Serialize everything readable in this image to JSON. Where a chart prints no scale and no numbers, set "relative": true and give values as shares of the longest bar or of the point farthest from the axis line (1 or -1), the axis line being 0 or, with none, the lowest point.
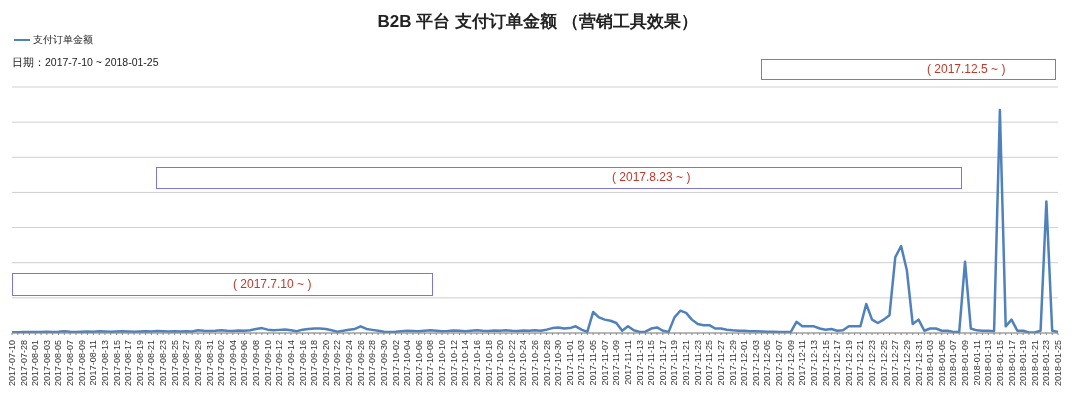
{
  "chart_data": {
    "type": "line",
    "title": "B2B 平台 支付订单金额 （营销工具效果）",
    "annotations": [
      "日期：2017-7-10 ~ 2018-01-25",
      "( 2017.7.10 ~ )",
      "( 2017.8.23 ~ )",
      "( 2017.12.5 ~ )"
    ],
    "categories": [
      "2017-07-10",
      null,
      "2017-07-28",
      null,
      "2017-08-01",
      null,
      "2017-08-03",
      null,
      "2017-08-05",
      null,
      "2017-08-07",
      null,
      "2017-08-09",
      null,
      "2017-08-11",
      null,
      "2017-08-13",
      null,
      "2017-08-15",
      null,
      "2017-08-17",
      null,
      "2017-08-19",
      null,
      "2017-08-21",
      null,
      "2017-08-23",
      null,
      "2017-08-25",
      null,
      "2017-08-27",
      null,
      "2017-08-29",
      null,
      "2017-08-31",
      null,
      "2017-09-02",
      null,
      "2017-09-04",
      null,
      "2017-09-06",
      null,
      "2017-09-08",
      null,
      "2017-09-10",
      null,
      "2017-09-12",
      null,
      "2017-09-14",
      null,
      "2017-09-16",
      null,
      "2017-09-18",
      null,
      "2017-09-20",
      null,
      "2017-09-22",
      null,
      "2017-09-24",
      null,
      "2017-09-26",
      null,
      "2017-09-28",
      null,
      "2017-09-30",
      null,
      "2017-10-02",
      null,
      "2017-10-04",
      null,
      "2017-10-06",
      null,
      "2017-10-08",
      null,
      "2017-10-10",
      null,
      "2017-10-12",
      null,
      "2017-10-14",
      null,
      "2017-10-16",
      null,
      "2017-10-18",
      null,
      "2017-10-20",
      null,
      "2017-10-22",
      null,
      "2017-10-24",
      null,
      "2017-10-26",
      null,
      "2017-10-28",
      null,
      "2017-10-30",
      null,
      "2017-11-01",
      null,
      "2017-11-03",
      null,
      "2017-11-05",
      null,
      "2017-11-07",
      null,
      "2017-11-09",
      null,
      "2017-11-11",
      null,
      "2017-11-13",
      null,
      "2017-11-15",
      null,
      "2017-11-17",
      null,
      "2017-11-19",
      null,
      "2017-11-21",
      null,
      "2017-11-23",
      null,
      "2017-11-25",
      null,
      "2017-11-27",
      null,
      "2017-11-29",
      null,
      "2017-12-01",
      null,
      "2017-12-03",
      null,
      "2017-12-05",
      null,
      "2017-12-07",
      null,
      "2017-12-09",
      null,
      "2017-12-11",
      null,
      "2017-12-13",
      null,
      "2017-12-15",
      null,
      "2017-12-17",
      null,
      "2017-12-19",
      null,
      "2017-12-21",
      null,
      "2017-12-23",
      null,
      "2017-12-25",
      null,
      "2017-12-27",
      null,
      "2017-12-29",
      null,
      "2017-12-31",
      null,
      "2018-01-03",
      null,
      "2018-01-05",
      null,
      "2018-01-07",
      null,
      "2018-01-09",
      null,
      "2018-01-11",
      null,
      "2018-01-13",
      null,
      "2018-01-15",
      null,
      "2018-01-17",
      null,
      "2018-01-19",
      null,
      "2018-01-21",
      null,
      "2018-01-23",
      null,
      "2018-01-25"
    ],
    "series": [
      {
        "name": "支付订单金额",
        "color": "#4f81bd",
        "values": [
          0.003,
          0.003,
          0.004,
          0.004,
          0.005,
          0.005,
          0.006,
          0.005,
          0.006,
          0.008,
          0.006,
          0.005,
          0.006,
          0.007,
          0.006,
          0.008,
          0.007,
          0.006,
          0.007,
          0.008,
          0.007,
          0.006,
          0.007,
          0.008,
          0.007,
          0.009,
          0.008,
          0.007,
          0.008,
          0.007,
          0.008,
          0.007,
          0.012,
          0.01,
          0.009,
          0.01,
          0.012,
          0.01,
          0.009,
          0.011,
          0.01,
          0.012,
          0.018,
          0.022,
          0.015,
          0.012,
          0.014,
          0.016,
          0.012,
          0.008,
          0.015,
          0.018,
          0.02,
          0.02,
          0.018,
          0.012,
          0.006,
          0.01,
          0.015,
          0.018,
          0.03,
          0.018,
          0.014,
          0.01,
          0.006,
          0.005,
          0.006,
          0.008,
          0.01,
          0.009,
          0.008,
          0.01,
          0.012,
          0.01,
          0.008,
          0.009,
          0.011,
          0.01,
          0.008,
          0.01,
          0.012,
          0.01,
          0.009,
          0.011,
          0.01,
          0.012,
          0.01,
          0.009,
          0.011,
          0.01,
          0.012,
          0.01,
          0.015,
          0.022,
          0.025,
          0.02,
          0.022,
          0.03,
          0.015,
          0.005,
          0.094,
          0.07,
          0.06,
          0.055,
          0.045,
          0.01,
          0.03,
          0.012,
          0.005,
          0.006,
          0.02,
          0.025,
          0.01,
          0.005,
          0.07,
          0.1,
          0.09,
          0.06,
          0.04,
          0.035,
          0.035,
          0.02,
          0.02,
          0.015,
          0.012,
          0.01,
          0.01,
          0.008,
          0.008,
          0.007,
          0.006,
          0.006,
          0.005,
          0.004,
          0.004,
          0.05,
          0.03,
          0.03,
          0.03,
          0.02,
          0.015,
          0.018,
          0.01,
          0.012,
          0.03,
          0.03,
          0.03,
          0.13,
          0.06,
          0.045,
          0.06,
          0.08,
          0.34,
          0.39,
          0.28,
          0.04,
          0.06,
          0.01,
          0.02,
          0.02,
          0.01,
          0.01,
          0.005,
          0.005,
          0.32,
          0.02,
          0.012,
          0.01,
          0.01,
          0.008,
          1,
          0.03,
          0.06,
          0.01,
          0.01,
          0.002,
          0.002,
          0.01,
          0.59,
          0.01,
          0.005
        ]
      }
    ],
    "relative": true,
    "grid": "y",
    "legend": "top left"
  }
}
